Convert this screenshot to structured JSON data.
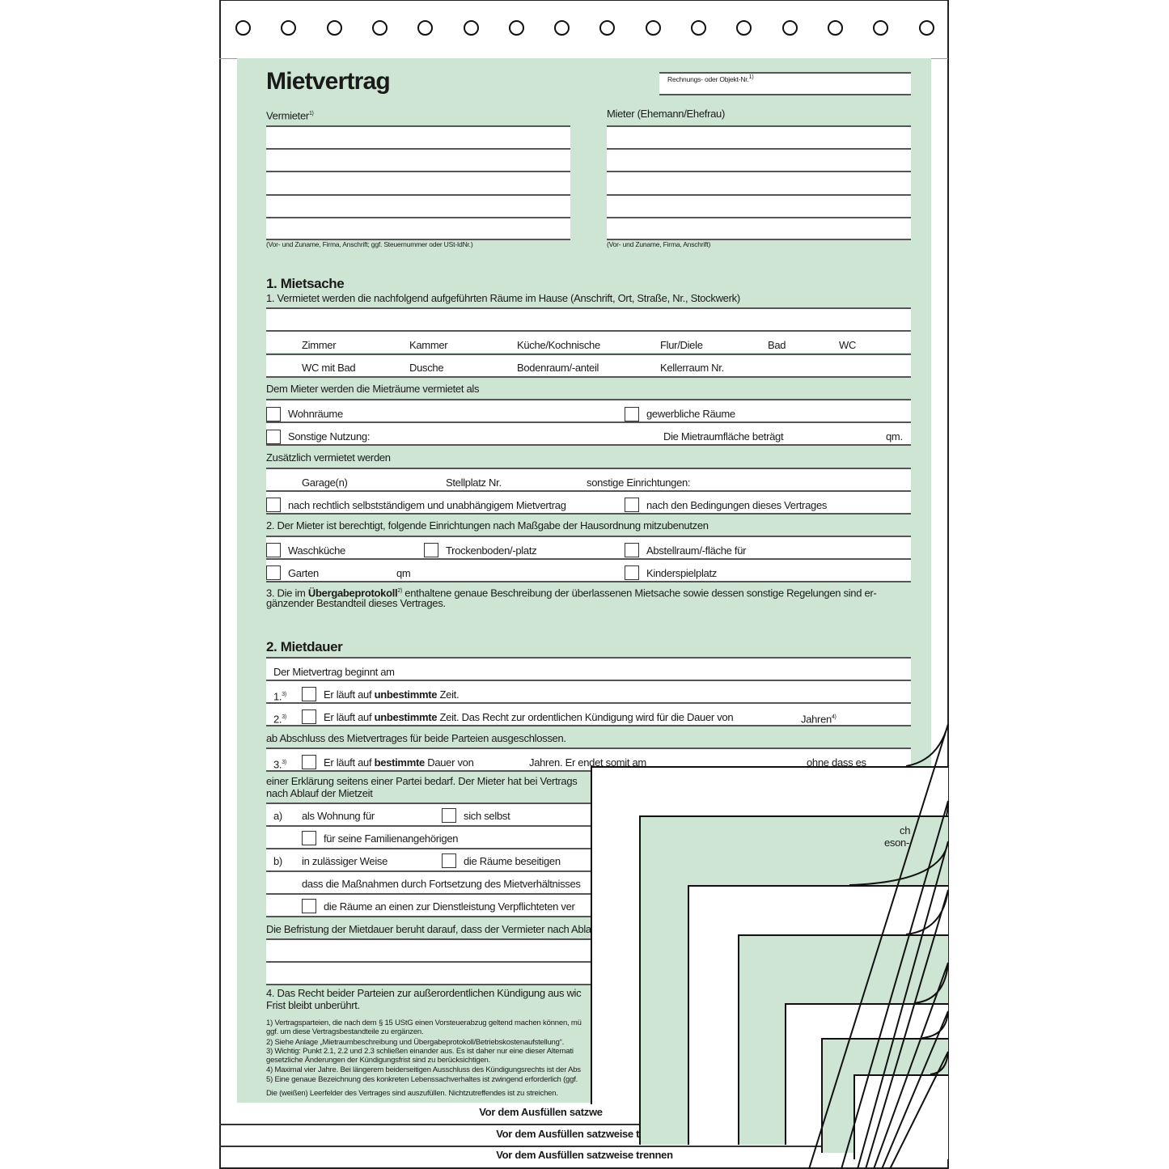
{
  "title": "Mietvertrag",
  "objekt_label": "Rechnungs- oder Objekt-Nr.",
  "vermieter_label": "Vermieter",
  "mieter_label": "Mieter (Ehemann/Ehefrau)",
  "vermieter_caption": "(Vor- und Zuname, Firma, Anschrift; ggf. Steuernummer oder USt-IdNr.)",
  "mieter_caption": "(Vor- und Zuname, Firma, Anschrift)",
  "s1": {
    "heading": "1. Mietsache",
    "intro": "1. Vermietet werden die nachfolgend aufgeführten Räume im Hause (Anschrift, Ort, Straße, Nr., Stockwerk)",
    "rooms1": [
      "Zimmer",
      "Kammer",
      "Küche/Kochnische",
      "Flur/Diele",
      "Bad",
      "WC"
    ],
    "rooms2": [
      "WC mit Bad",
      "Dusche",
      "Bodenraum/-anteil",
      "Kellerraum Nr."
    ],
    "als": "Dem Mieter werden die Mieträume vermietet als",
    "wohn": "Wohnräume",
    "gewerb": "gewerbliche Räume",
    "sonst": "Sonstige Nutzung:",
    "flaeche": "Die Mietraumfläche beträgt",
    "qm": "qm.",
    "zus": "Zusätzlich vermietet werden",
    "garage": "Garage(n)",
    "stell": "Stellplatz Nr.",
    "einr": "sonstige Einrichtungen:",
    "selbst": "nach rechtlich selbstständigem und unabhängigem Mietvertrag",
    "bed": "nach den Bedingungen dieses Vertrages",
    "p2": "2. Der Mieter ist berechtigt, folgende Einrichtungen nach Maßgabe der Hausordnung mitzubenutzen",
    "wasch": "Waschküche",
    "trocken": "Trockenboden/-platz",
    "abstell": "Abstellraum/-fläche für",
    "garten": "Garten",
    "gqm": "qm",
    "kinder": "Kinderspielplatz",
    "p3a": "3. Die im ",
    "p3b": "Übergabeprotokoll",
    "p3c": " enthaltene genaue Beschreibung der überlassenen Mietsache sowie dessen sonstige Regelungen sind er-",
    "p3d": "gänzender Bestandteil dieses Vertrages."
  },
  "s2": {
    "heading": "2. Mietdauer",
    "beginnt": "Der Mietvertrag beginnt am",
    "n1": "1.",
    "n2": "2.",
    "n3": "3.",
    "l1a": "Er läuft auf ",
    "l1b": "unbestimmte",
    "l1c": " Zeit.",
    "l2c": " Zeit. Das Recht zur ordentlichen Kündigung wird für die Dauer von",
    "jahren": "Jahren",
    "ab": "ab Abschluss des Mietvertrages für beide Parteien ausgeschlossen.",
    "l3b": "bestimmte",
    "l3c": " Dauer von",
    "l3d": "Jahren. Er endet somit am",
    "l3e": "ohne dass es",
    "erkl1": "einer Erklärung seitens einer Partei bedarf. Der Mieter hat bei Vertrags",
    "erkl2": "nach Ablauf der Mietzeit",
    "a": "a)",
    "awohn": "als Wohnung für",
    "aselbst": "sich selbst",
    "afam": "für seine Familienangehörigen",
    "b": "b)",
    "bweise": "in zulässiger Weise",
    "bbes": "die Räume beseitigen",
    "bdass": "dass die Maßnahmen durch Fortsetzung des Mietverhältnisses",
    "bdienst": "die Räume an einen zur Dienstleistung Verpflichteten ver",
    "right1": "ch",
    "right2": "eson-",
    "befr": "Die Befristung der Mietdauer beruht darauf, dass der Vermieter nach Abla",
    "p4a": "4. Das Recht beider Parteien zur außerordentlichen Kündigung aus wic",
    "p4b": "Frist bleibt unberührt."
  },
  "footnotes": [
    "1)  Vertragsparteien, die nach dem § 15 UStG einen Vorsteuerabzug geltend machen können, mü",
    "     ggf. um diese Vertragsbestandteile zu ergänzen.",
    "2)  Siehe Anlage „Mietraumbeschreibung und Übergabeprotokoll/Betriebskostenaufstellung“.",
    "3)  Wichtig: Punkt 2.1, 2.2 und 2.3 schließen einander aus. Es ist daher nur eine dieser Alternati",
    "     gesetzliche Änderungen der Kündigungsfrist sind zu berücksichtigen.",
    "4)  Maximal vier Jahre. Bei längerem beiderseitigen Ausschluss des Kündigungsrechts ist der Abs",
    "5)  Eine genaue Bezeichnung des konkreten Lebenssachverhaltes ist zwingend erforderlich (ggf.",
    "Die (weißen) Leerfelder des Vertrages sind auszufüllen. Nichtzutreffendes ist zu streichen."
  ],
  "separator": "Vor dem Ausfüllen satzweise trennen",
  "separator_partial": "Vor dem Ausfüllen satzwe",
  "colors": {
    "green": "#cfe5d4",
    "line": "#555555"
  }
}
